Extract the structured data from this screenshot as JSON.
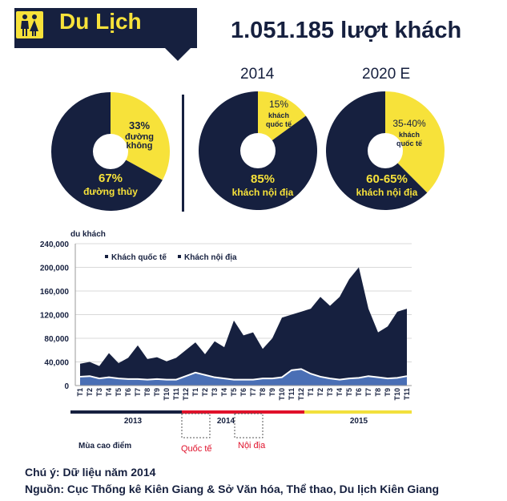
{
  "header": {
    "title": "Du Lịch",
    "headline": "1.051.185 lượt khách",
    "icon": "restroom-icon"
  },
  "pies": [
    {
      "year": "",
      "slices": [
        {
          "value": 67,
          "pct_label": "67%",
          "name_lines": [
            "đường thủy"
          ],
          "color": "#16203f"
        },
        {
          "value": 33,
          "pct_label": "33%",
          "name_lines": [
            "đường",
            "không"
          ],
          "color": "#f7e23a"
        }
      ]
    },
    {
      "year": "2014",
      "slices": [
        {
          "value": 85,
          "pct_label": "85%",
          "name_lines": [
            "khách nội địa"
          ],
          "color": "#16203f"
        },
        {
          "value": 15,
          "pct_label": "15%",
          "name_lines": [
            "khách",
            "quốc tế"
          ],
          "color": "#f7e23a"
        }
      ]
    },
    {
      "year": "2020 E",
      "slices": [
        {
          "value": 62.5,
          "pct_label": "60-65%",
          "name_lines": [
            "khách nội địa"
          ],
          "color": "#16203f"
        },
        {
          "value": 37.5,
          "pct_label": "35-40%",
          "name_lines": [
            "khách",
            "quốc tế"
          ],
          "color": "#f7e23a"
        }
      ]
    }
  ],
  "chart_data": {
    "type": "area",
    "ylabel": "du khách",
    "ylim": [
      0,
      240000
    ],
    "yticks": [
      0,
      40000,
      80000,
      120000,
      160000,
      200000,
      240000
    ],
    "ytick_labels": [
      "0",
      "40,000",
      "80,000",
      "120,000",
      "160,000",
      "200,000",
      "240,000"
    ],
    "x": [
      "T1",
      "T2",
      "T3",
      "T4",
      "T5",
      "T6",
      "T7",
      "T8",
      "T9",
      "T10",
      "T11",
      "T12",
      "T1",
      "T2",
      "T3",
      "T4",
      "T5",
      "T6",
      "T7",
      "T8",
      "T9",
      "T10",
      "T11",
      "T12",
      "T1",
      "T2",
      "T3",
      "T4",
      "T5",
      "T6",
      "T7",
      "T8",
      "T9",
      "T10",
      "T11"
    ],
    "series": [
      {
        "name": "Khách nội địa",
        "color": "#16203f",
        "values": [
          37000,
          40000,
          33000,
          55000,
          38000,
          47000,
          68000,
          45000,
          48000,
          41000,
          47000,
          60000,
          73000,
          53000,
          75000,
          65000,
          110000,
          85000,
          90000,
          62000,
          80000,
          115000,
          120000,
          125000,
          130000,
          150000,
          135000,
          150000,
          180000,
          200000,
          130000,
          90000,
          100000,
          125000,
          130000
        ]
      },
      {
        "name": "Khách quốc tế",
        "color": "#4a6fb5",
        "values": [
          15000,
          16000,
          12000,
          14000,
          12000,
          11000,
          11000,
          10000,
          11000,
          10000,
          10000,
          16000,
          22000,
          18000,
          14000,
          12000,
          10000,
          10000,
          10000,
          12000,
          12000,
          14000,
          26000,
          28000,
          20000,
          15000,
          12000,
          10000,
          12000,
          13000,
          16000,
          14000,
          12000,
          13000,
          16000
        ]
      }
    ],
    "year_bands": [
      {
        "label": "2013",
        "color": "#16203f"
      },
      {
        "label": "2014",
        "color": "#e0102a"
      },
      {
        "label": "2015",
        "color": "#f2e03c"
      }
    ],
    "annotations": {
      "peak_season": "Mùa cao điểm",
      "intl_label": "Quốc tế",
      "domestic_label": "Nội địa"
    }
  },
  "notes": {
    "note": "Chú ý: Dữ liệu năm 2014",
    "source": "Nguồn: Cục Thống kê Kiên Giang & Sở Văn hóa, Thể thao, Du lịch Kiên Giang"
  }
}
